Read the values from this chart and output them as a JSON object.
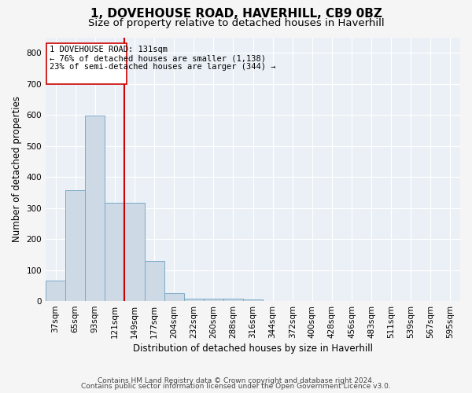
{
  "title": "1, DOVEHOUSE ROAD, HAVERHILL, CB9 0BZ",
  "subtitle": "Size of property relative to detached houses in Haverhill",
  "xlabel": "Distribution of detached houses by size in Haverhill",
  "ylabel": "Number of detached properties",
  "footer_line1": "Contains HM Land Registry data © Crown copyright and database right 2024.",
  "footer_line2": "Contains public sector information licensed under the Open Government Licence v3.0.",
  "categories": [
    "37sqm",
    "65sqm",
    "93sqm",
    "121sqm",
    "149sqm",
    "177sqm",
    "204sqm",
    "232sqm",
    "260sqm",
    "288sqm",
    "316sqm",
    "344sqm",
    "372sqm",
    "400sqm",
    "428sqm",
    "456sqm",
    "483sqm",
    "511sqm",
    "539sqm",
    "567sqm",
    "595sqm"
  ],
  "values": [
    65,
    357,
    597,
    317,
    317,
    130,
    25,
    8,
    8,
    8,
    5,
    0,
    0,
    0,
    0,
    0,
    0,
    0,
    0,
    0,
    0
  ],
  "bar_color": "#cdd9e5",
  "bar_edge_color": "#7aaac8",
  "red_line_x": 3.5,
  "red_line_label": "1 DOVEHOUSE ROAD: 131sqm",
  "annotation_line1": "← 76% of detached houses are smaller (1,138)",
  "annotation_line2": "23% of semi-detached houses are larger (344) →",
  "annotation_box_color": "#cc0000",
  "ylim": [
    0,
    850
  ],
  "yticks": [
    0,
    100,
    200,
    300,
    400,
    500,
    600,
    700,
    800
  ],
  "background_color": "#eaf0f6",
  "grid_color": "#ffffff",
  "title_fontsize": 11,
  "subtitle_fontsize": 9.5,
  "axis_label_fontsize": 8.5,
  "tick_fontsize": 7.5,
  "footer_fontsize": 6.5
}
